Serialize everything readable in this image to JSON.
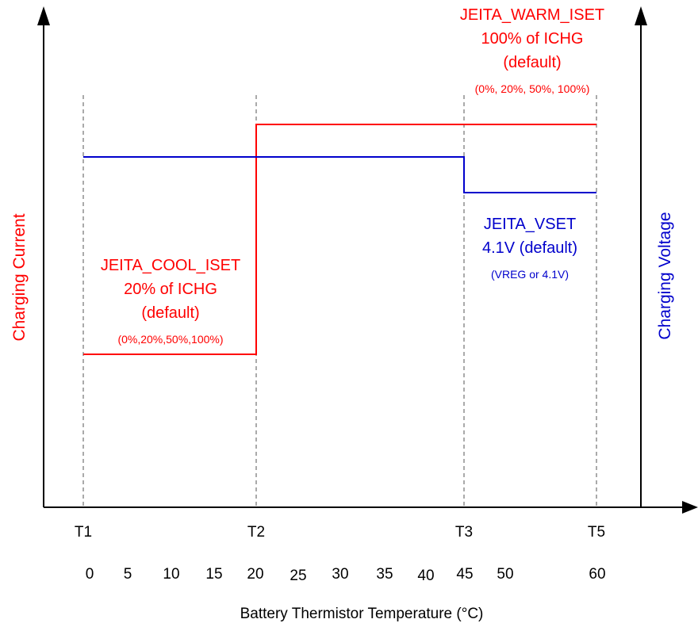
{
  "axes": {
    "left_label": "Charging Current",
    "right_label": "Charging Voltage",
    "x_label": "Battery Thermistor Temperature (°C)"
  },
  "thresholds": [
    {
      "label": "T1",
      "temp": 0
    },
    {
      "label": "T2",
      "temp": 20
    },
    {
      "label": "T3",
      "temp": 45
    },
    {
      "label": "T5",
      "temp": 60
    }
  ],
  "temperature_ticks": [
    "0",
    "5",
    "10",
    "15",
    "20",
    "25",
    "30",
    "35",
    "40",
    "45",
    "50",
    "60"
  ],
  "cool_iset": {
    "name": "JEITA_COOL_ISET",
    "value": "20% of ICHG",
    "default": "(default)",
    "options": "(0%,20%,50%,100%)"
  },
  "warm_iset": {
    "name": "JEITA_WARM_ISET",
    "value": "100% of ICHG",
    "default": "(default)",
    "options": "(0%, 20%, 50%, 100%)"
  },
  "vset": {
    "name": "JEITA_VSET",
    "value": "4.1V (default)",
    "options": "(VREG or 4.1V)"
  },
  "colors": {
    "current": "#ff0000",
    "voltage": "#0000cc",
    "axis": "#000000",
    "guide": "#555555"
  }
}
